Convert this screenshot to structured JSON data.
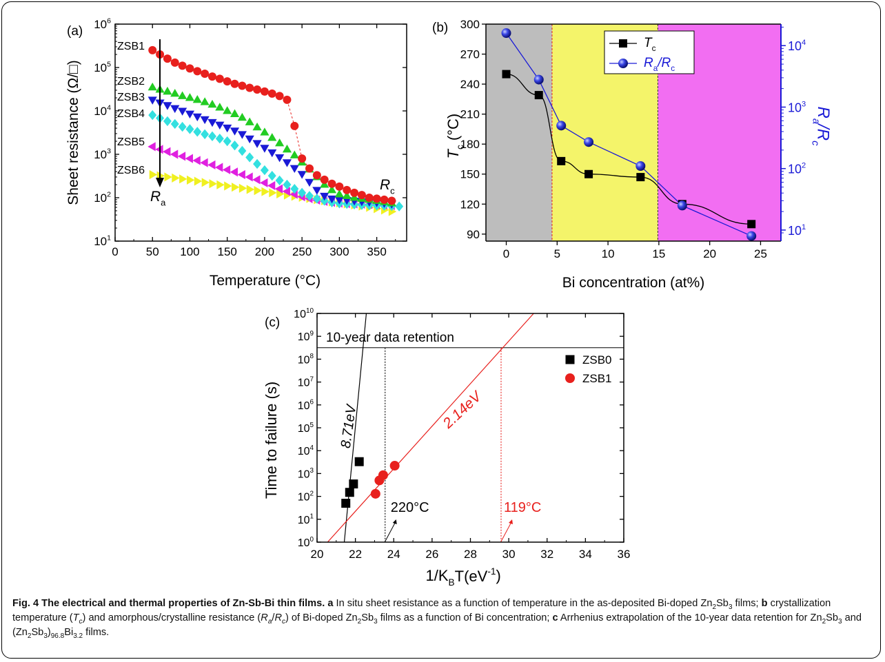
{
  "colors": {
    "axis": "#000000",
    "red": "#e8201d",
    "green": "#22cc22",
    "blue": "#1a1ad6",
    "cyan": "#33e0e0",
    "magenta": "#e020e0",
    "yellow": "#f0f020",
    "grey_band": "#bdbdbd",
    "yellow_band": "#f4f46a",
    "magenta_band": "#f26ef2",
    "right_axis": "#1a1ad6",
    "zsb1_line": "#e8201d"
  },
  "chart_data": [
    {
      "id": "a",
      "type": "scatter",
      "panel_label": "(a)",
      "xlabel": "Temperature (°C)",
      "ylabel": "Sheet resistance (Ω/□)",
      "xlim": [
        0,
        390
      ],
      "ylim_log10": [
        1,
        6
      ],
      "yscale": "log",
      "xticks": [
        "0",
        "50",
        "100",
        "150",
        "200",
        "250",
        "300",
        "350"
      ],
      "yticks": [
        "10^1",
        "10^2",
        "10^3",
        "10^4",
        "10^5",
        "10^6"
      ],
      "annotations": {
        "arrow_top": "",
        "arrow_bottom": "R_a",
        "rc": "R_c"
      },
      "series": [
        {
          "name": "ZSB1",
          "color": "#e8201d",
          "marker": "circle",
          "x": [
            50,
            60,
            70,
            80,
            90,
            100,
            110,
            120,
            130,
            140,
            150,
            160,
            170,
            180,
            190,
            200,
            210,
            220,
            230,
            240,
            250,
            260,
            270,
            280,
            290,
            300,
            310,
            320,
            330,
            340,
            350,
            360,
            370
          ],
          "y": [
            250000,
            200000,
            160000,
            130000,
            110000,
            95000,
            82000,
            72000,
            62000,
            55000,
            48000,
            42000,
            38000,
            34000,
            31000,
            28000,
            25000,
            22000,
            18000,
            4500,
            800,
            470,
            330,
            260,
            210,
            180,
            150,
            130,
            115,
            100,
            95,
            90,
            85
          ]
        },
        {
          "name": "ZSB2",
          "color": "#22cc22",
          "marker": "triangle-up",
          "x": [
            50,
            60,
            70,
            80,
            90,
            100,
            110,
            120,
            130,
            140,
            150,
            160,
            170,
            180,
            190,
            200,
            210,
            220,
            230,
            240,
            250,
            260,
            270,
            280,
            290,
            300,
            310,
            320,
            330,
            340,
            350,
            360,
            370
          ],
          "y": [
            35000,
            31000,
            28000,
            25000,
            22000,
            20000,
            18000,
            16000,
            14000,
            12000,
            10000,
            8500,
            7000,
            5500,
            4200,
            3200,
            2400,
            1800,
            1300,
            950,
            650,
            450,
            300,
            200,
            150,
            120,
            110,
            100,
            95,
            90,
            85,
            80,
            75
          ]
        },
        {
          "name": "ZSB3",
          "color": "#1a1ad6",
          "marker": "triangle-down",
          "x": [
            50,
            60,
            70,
            80,
            90,
            100,
            110,
            120,
            130,
            140,
            150,
            160,
            170,
            180,
            190,
            200,
            210,
            220,
            230,
            240,
            250,
            260,
            270,
            280,
            290,
            300,
            310,
            320,
            330,
            340,
            350,
            360,
            370
          ],
          "y": [
            18000,
            15500,
            13500,
            11500,
            10000,
            8600,
            7400,
            6400,
            5500,
            4800,
            4100,
            3500,
            2900,
            2300,
            1800,
            1400,
            1100,
            850,
            650,
            480,
            350,
            230,
            150,
            110,
            95,
            90,
            88,
            85,
            82,
            80,
            78,
            75,
            72
          ]
        },
        {
          "name": "ZSB4",
          "color": "#33e0e0",
          "marker": "diamond",
          "x": [
            50,
            60,
            70,
            80,
            90,
            100,
            110,
            120,
            130,
            140,
            150,
            160,
            170,
            180,
            190,
            200,
            210,
            220,
            230,
            240,
            250,
            260,
            270,
            280,
            290,
            300,
            310,
            320,
            330,
            340,
            350,
            360,
            370,
            380
          ],
          "y": [
            8000,
            6800,
            5800,
            5000,
            4300,
            3800,
            3300,
            2900,
            2600,
            2300,
            2000,
            1600,
            1200,
            850,
            600,
            430,
            320,
            250,
            200,
            160,
            130,
            110,
            95,
            85,
            78,
            74,
            72,
            70,
            68,
            67,
            66,
            65,
            64,
            63
          ]
        },
        {
          "name": "ZSB5",
          "color": "#e020e0",
          "marker": "triangle-left",
          "x": [
            50,
            60,
            70,
            80,
            90,
            100,
            110,
            120,
            130,
            140,
            150,
            160,
            170,
            180,
            190,
            200,
            210,
            220,
            230,
            240,
            250,
            260,
            270,
            280,
            290,
            300,
            310,
            320,
            330,
            340,
            350,
            360,
            370
          ],
          "y": [
            1500,
            1300,
            1150,
            1000,
            900,
            800,
            720,
            640,
            570,
            500,
            440,
            390,
            340,
            300,
            260,
            220,
            190,
            160,
            140,
            120,
            105,
            95,
            88,
            82,
            78,
            75,
            73,
            72,
            71,
            70,
            69,
            68,
            66
          ]
        },
        {
          "name": "ZSB6",
          "color": "#f0f020",
          "marker": "triangle-right",
          "x": [
            50,
            60,
            70,
            80,
            90,
            100,
            110,
            120,
            130,
            140,
            150,
            160,
            170,
            180,
            190,
            200,
            210,
            220,
            230,
            240,
            250,
            260,
            270,
            280,
            290,
            300,
            310,
            320,
            330,
            340,
            350,
            360,
            370
          ],
          "y": [
            340,
            320,
            300,
            285,
            270,
            255,
            240,
            225,
            210,
            198,
            186,
            175,
            165,
            155,
            146,
            138,
            130,
            122,
            115,
            108,
            102,
            96,
            90,
            85,
            80,
            76,
            72,
            68,
            64,
            60,
            56,
            52,
            48
          ]
        }
      ]
    },
    {
      "id": "b",
      "type": "line",
      "panel_label": "(b)",
      "xlabel": "Bi concentration (at%)",
      "ylabel": "T_c (°C)",
      "y2label": "R_a/R_c",
      "xlim": [
        -2,
        27
      ],
      "ylim": [
        83,
        300
      ],
      "y2lim_log10": [
        0.82,
        4.35
      ],
      "y2scale": "log",
      "xticks": [
        "0",
        "5",
        "10",
        "15",
        "20",
        "25"
      ],
      "yticks": [
        "90",
        "120",
        "150",
        "180",
        "210",
        "240",
        "270",
        "300"
      ],
      "y2ticks": [
        "10^1",
        "10^2",
        "10^3",
        "10^4"
      ],
      "bands": [
        {
          "from": -2,
          "to": 4.5,
          "color": "#bdbdbd"
        },
        {
          "from": 4.5,
          "to": 14.9,
          "color": "#f4f46a"
        },
        {
          "from": 14.9,
          "to": 27,
          "color": "#f26ef2"
        }
      ],
      "legend": {
        "position": "top-center",
        "entries": [
          "T_c",
          "R_a/R_c"
        ]
      },
      "series": [
        {
          "name": "T_c",
          "axis": "left",
          "color": "#000000",
          "marker": "square",
          "x": [
            0,
            3.2,
            5.4,
            8.1,
            13.2,
            17.3,
            24.1
          ],
          "y": [
            250,
            229,
            163,
            150,
            147,
            120,
            100
          ]
        },
        {
          "name": "R_a/R_c",
          "axis": "right",
          "color": "#1a1ad6",
          "marker": "sphere",
          "x": [
            0,
            3.2,
            5.4,
            8.1,
            13.2,
            17.3,
            24.1
          ],
          "y": [
            16000,
            2800,
            500,
            270,
            110,
            25,
            8
          ]
        }
      ]
    },
    {
      "id": "c",
      "type": "scatter",
      "panel_label": "(c)",
      "xlabel": "1/K_BT(eV^-1)",
      "ylabel": "Time to failure (s)",
      "xlim": [
        20,
        36
      ],
      "ylim_log10": [
        0,
        10
      ],
      "yscale": "log",
      "xticks": [
        "20",
        "22",
        "24",
        "26",
        "28",
        "30",
        "32",
        "34",
        "36"
      ],
      "yticks": [
        "10^0",
        "10^1",
        "10^2",
        "10^3",
        "10^4",
        "10^5",
        "10^6",
        "10^7",
        "10^8",
        "10^9",
        "10^10"
      ],
      "retention_label": "10-year data retention",
      "retention_log10": 8.5,
      "legend": {
        "position": "right",
        "entries": [
          "ZSB0",
          "ZSB1"
        ]
      },
      "fits": [
        {
          "name": "ZSB0",
          "color": "#000000",
          "label": "8.71eV",
          "x": [
            21.42,
            22.57
          ],
          "y_log10": [
            0,
            10
          ]
        },
        {
          "name": "ZSB1",
          "color": "#e8201d",
          "label": "2.14eV",
          "x": [
            20.55,
            31.3
          ],
          "y_log10": [
            0,
            10
          ]
        }
      ],
      "markers": [
        {
          "label": "220°C",
          "x": 23.55,
          "color": "#000000"
        },
        {
          "label": "119°C",
          "x": 29.6,
          "color": "#e8201d"
        }
      ],
      "series": [
        {
          "name": "ZSB0",
          "color": "#000000",
          "marker": "square",
          "x": [
            21.5,
            21.7,
            21.9,
            22.2
          ],
          "y": [
            50,
            150,
            350,
            3300
          ]
        },
        {
          "name": "ZSB1",
          "color": "#e8201d",
          "marker": "circle",
          "x": [
            23.05,
            23.25,
            23.45,
            24.05
          ],
          "y": [
            130,
            500,
            850,
            2200
          ]
        }
      ]
    }
  ],
  "caption": {
    "lead": "Fig. 4 The electrical and thermal properties of Zn-Sb-Bi thin films.",
    "a_tag": "a",
    "a_text": " In situ sheet resistance as a function of temperature in the as-deposited Bi-doped Zn",
    "sb": "Sb",
    "films1": " films; ",
    "b_tag": "b",
    "b_text1": " crystallization temperature (",
    "tc": "T",
    "c_sub": "c",
    "b_text2": ") and amorphous/crystalline resistance (",
    "ra": "R",
    "a_sub": "a",
    "slash": "/",
    "rc": "R",
    "b_text3": ") of Bi-doped Zn",
    "b_text4": " films as a function of Bi concentration; ",
    "c_tag": "c",
    "c_text1": " Arrhenius extrapolation of the 10-year data retention for Zn",
    "and": " and (Zn",
    "close": ")",
    "bi": "Bi",
    "tail": " films.",
    "n2": "2",
    "n3": "3",
    "n968": "96.8",
    "n32": "3.2"
  }
}
